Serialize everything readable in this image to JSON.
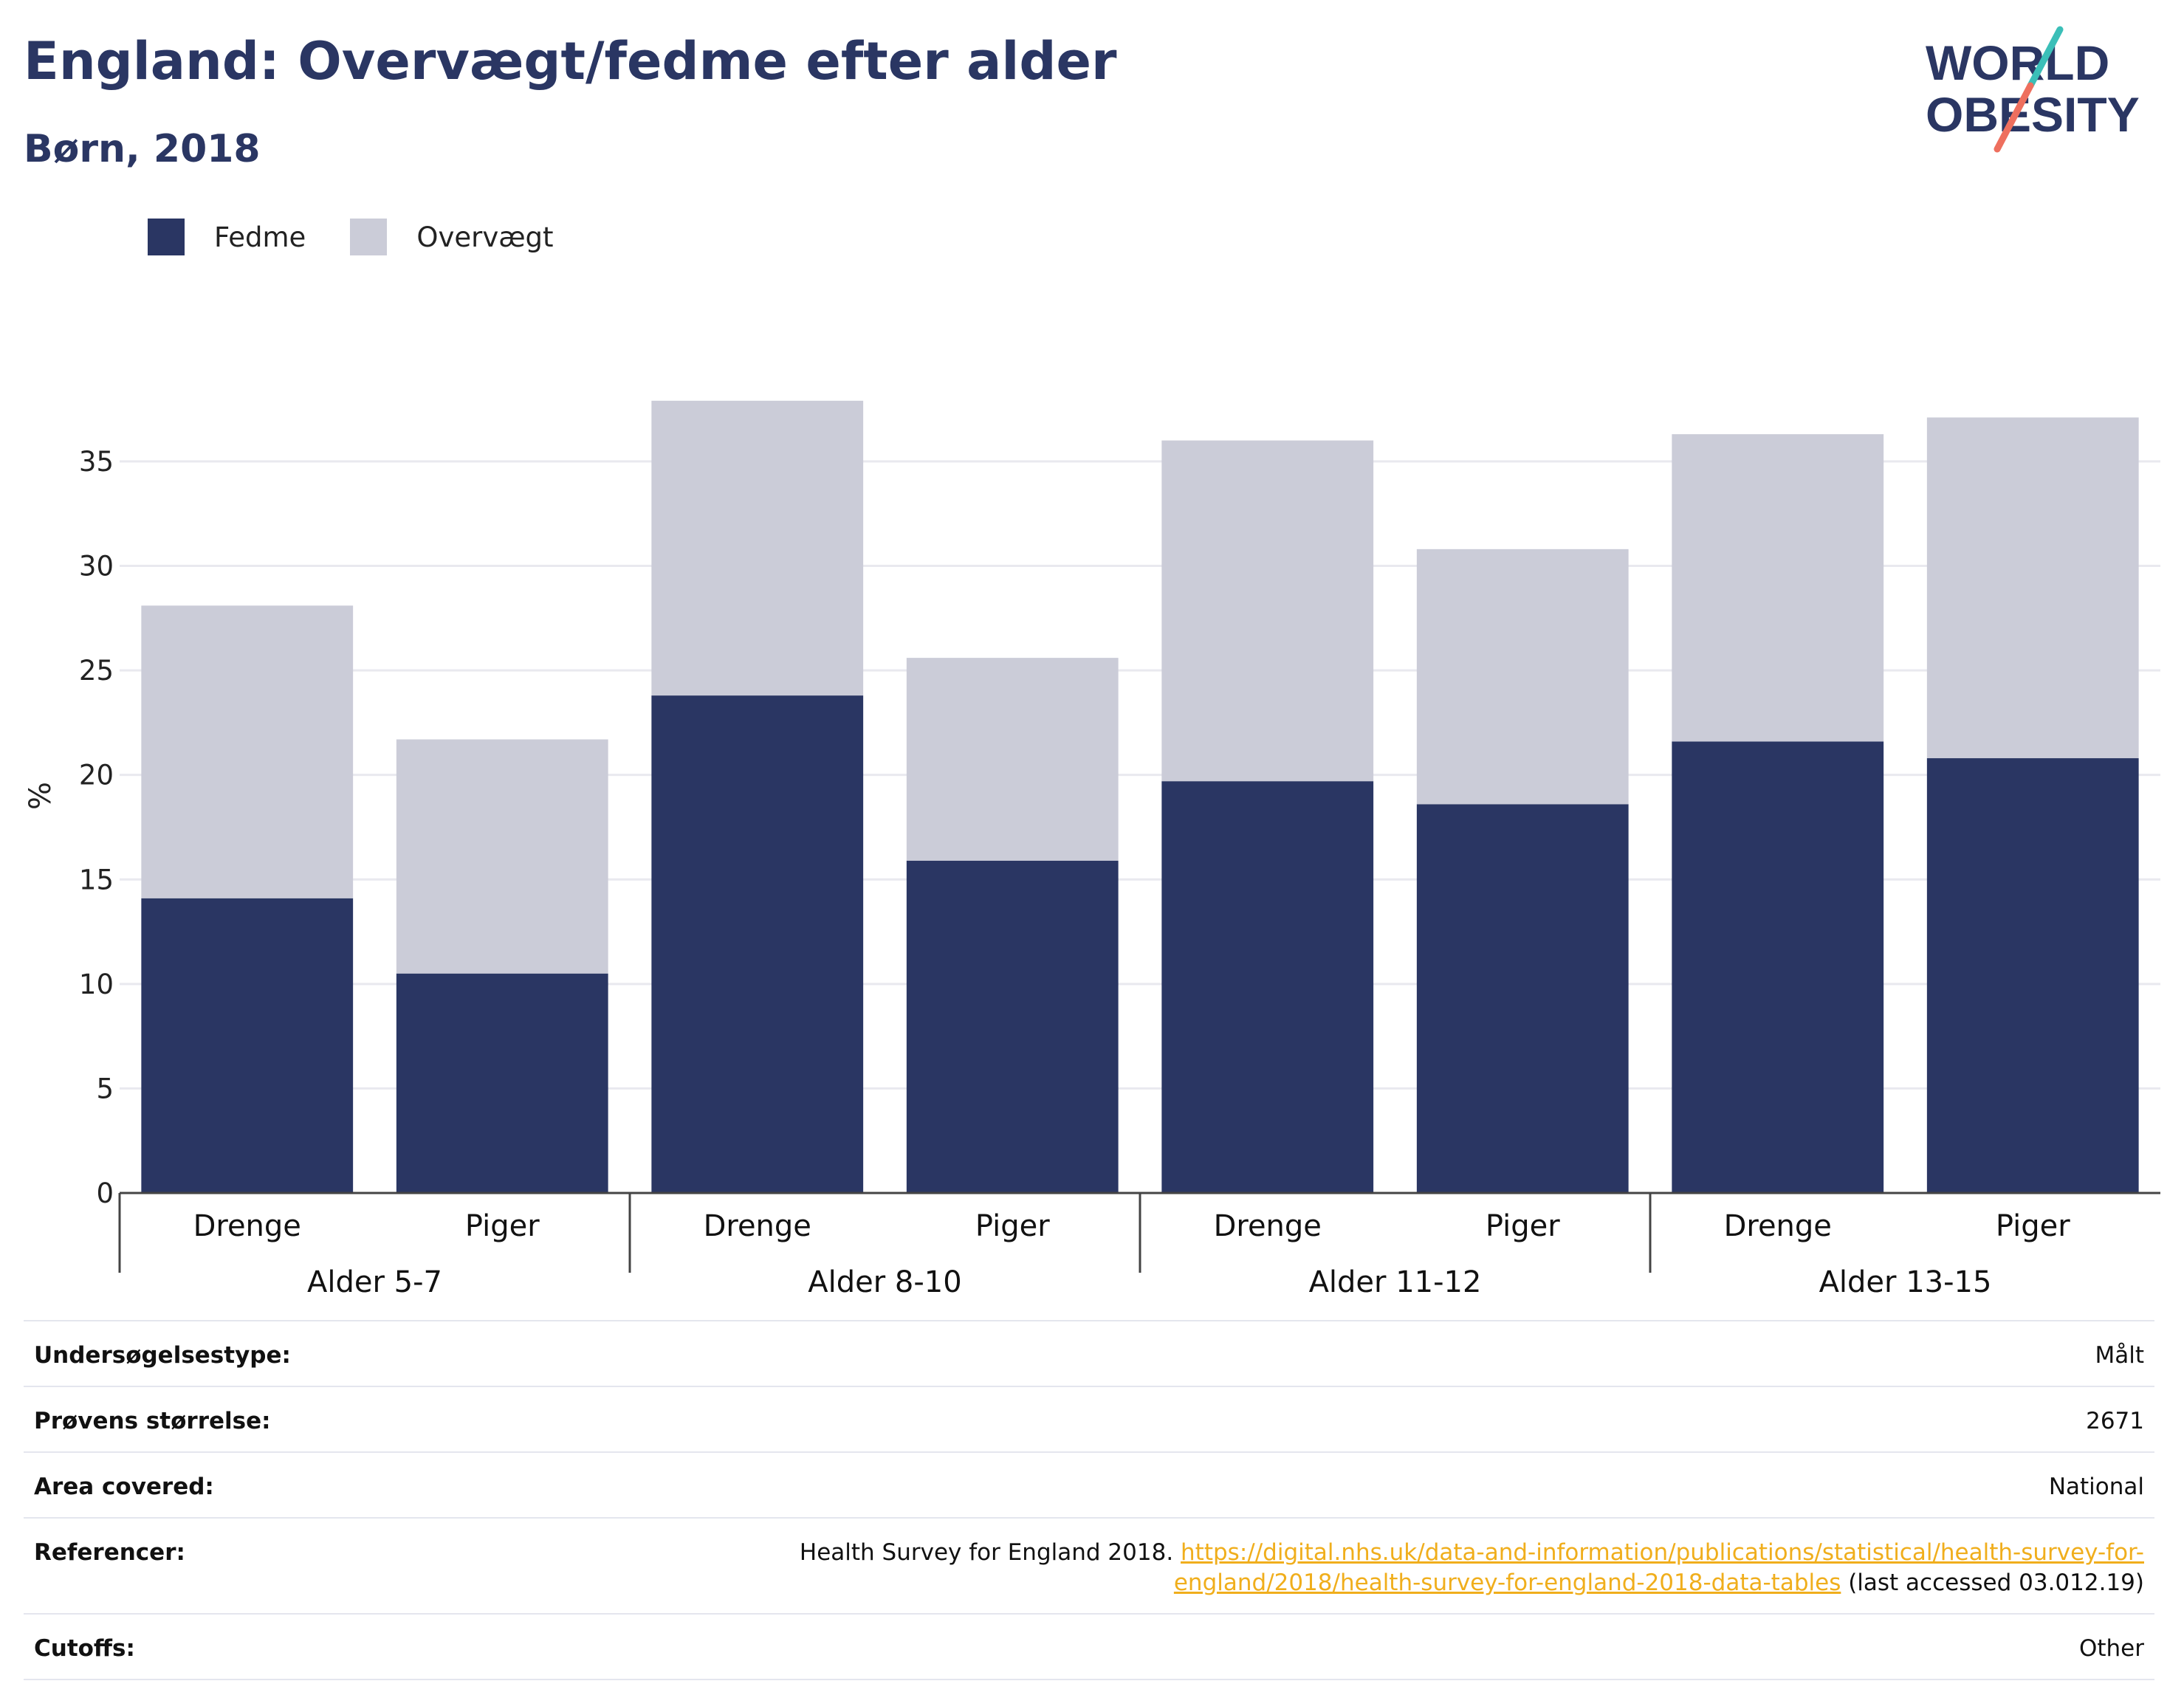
{
  "title": "England: Overvægt/fedme efter alder",
  "subtitle": "Børn, 2018",
  "logo": {
    "line1": "WORLD",
    "line2": "OBESITY",
    "colors": {
      "text": "#2a3663",
      "slash_teal": "#3bbfb8",
      "slash_coral": "#ee6f5e"
    }
  },
  "legend": [
    {
      "label": "Fedme",
      "color": "#2a3663"
    },
    {
      "label": "Overvægt",
      "color": "#cbccd8"
    }
  ],
  "chart_data": {
    "type": "bar",
    "stacked": true,
    "ylabel": "%",
    "ylim": [
      0,
      38
    ],
    "yticks": [
      0,
      5,
      10,
      15,
      20,
      25,
      30,
      35
    ],
    "grid": true,
    "legend_position": "top-left",
    "groups": [
      {
        "label": "Alder 5-7",
        "categories": [
          "Drenge",
          "Piger"
        ]
      },
      {
        "label": "Alder 8-10",
        "categories": [
          "Drenge",
          "Piger"
        ]
      },
      {
        "label": "Alder 11-12",
        "categories": [
          "Drenge",
          "Piger"
        ]
      },
      {
        "label": "Alder 13-15",
        "categories": [
          "Drenge",
          "Piger"
        ]
      }
    ],
    "categories": [
      "Drenge",
      "Piger",
      "Drenge",
      "Piger",
      "Drenge",
      "Piger",
      "Drenge",
      "Piger"
    ],
    "series": [
      {
        "name": "Fedme",
        "color": "#2a3663",
        "values": [
          14.1,
          10.5,
          23.8,
          15.9,
          19.7,
          18.6,
          21.6,
          20.8
        ]
      },
      {
        "name": "Overvægt",
        "color": "#cbccd8",
        "values": [
          14.0,
          11.2,
          14.1,
          9.7,
          16.3,
          12.2,
          14.7,
          16.3
        ]
      }
    ]
  },
  "meta": [
    {
      "label": "Undersøgelsestype:",
      "value": "Målt"
    },
    {
      "label": "Prøvens størrelse:",
      "value": "2671"
    },
    {
      "label": "Area covered:",
      "value": "National"
    },
    {
      "label": "Referencer:",
      "value_prefix": "Health Survey for England 2018. ",
      "link": "https://digital.nhs.uk/data-and-information/publications/statistical/health-survey-for-england/2018/health-survey-for-england-2018-data-tables",
      "value_suffix": " (last accessed 03.012.19)"
    },
    {
      "label": "Cutoffs:",
      "value": "Other"
    }
  ]
}
